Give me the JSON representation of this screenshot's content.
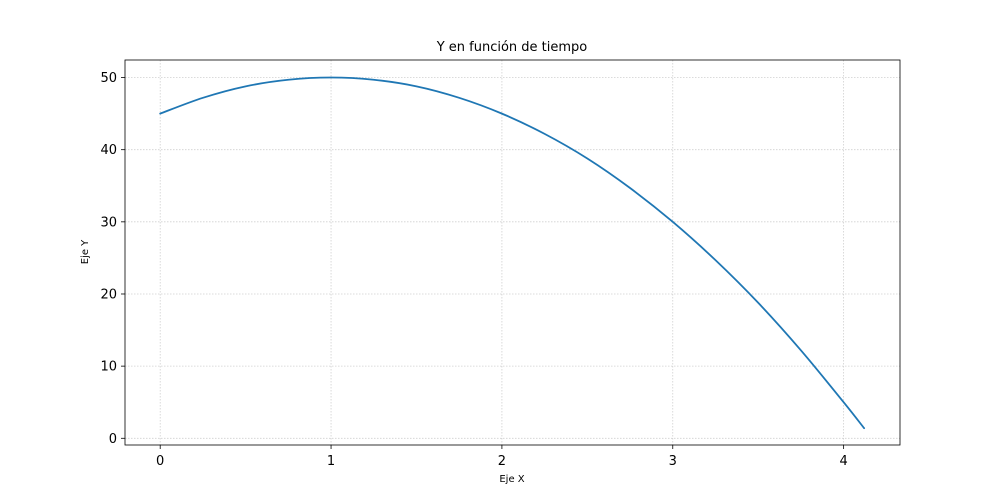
{
  "chart_data": {
    "type": "line",
    "title": "Y en función de tiempo",
    "xlabel": "Eje X",
    "ylabel": "Eje Y",
    "xlim": [
      -0.206,
      4.33
    ],
    "ylim": [
      -0.93,
      52.43
    ],
    "x_ticks": [
      "0",
      "1",
      "2",
      "3",
      "4"
    ],
    "y_ticks": [
      "0",
      "10",
      "20",
      "30",
      "40",
      "50"
    ],
    "grid": true,
    "legend": "none",
    "colors": {
      "line": "#1f77b4",
      "grid": "#d0d0d0",
      "axis": "#000000"
    },
    "series": [
      {
        "x": [
          0,
          0.25,
          0.5,
          0.75,
          1.0,
          1.25,
          1.5,
          1.75,
          2.0,
          2.25,
          2.5,
          2.75,
          3.0,
          3.25,
          3.5,
          3.75,
          4.0,
          4.12
        ],
        "y": [
          45.0,
          47.19,
          48.78,
          49.69,
          50.0,
          49.69,
          48.78,
          47.19,
          45.0,
          42.19,
          38.78,
          34.69,
          30.0,
          24.69,
          18.78,
          12.19,
          5.0,
          1.4
        ]
      }
    ]
  }
}
